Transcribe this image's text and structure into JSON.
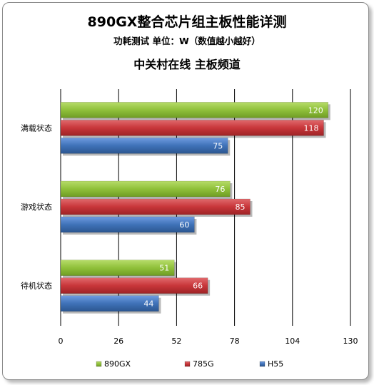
{
  "chart_data": {
    "type": "bar",
    "orientation": "horizontal",
    "title": "890GX整合芯片组主板性能详测",
    "subtitle": "功耗测试 单位：W（数值越小越好）",
    "source": "中关村在线 主板频道",
    "categories": [
      "满载状态",
      "游戏状态",
      "待机状态"
    ],
    "series": [
      {
        "name": "890GX",
        "color": "#8fc03a",
        "values": [
          120,
          76,
          51
        ]
      },
      {
        "name": "785G",
        "color": "#c8363a",
        "values": [
          118,
          85,
          66
        ]
      },
      {
        "name": "H55",
        "color": "#3f72b8",
        "values": [
          75,
          60,
          44
        ]
      }
    ],
    "xlim": [
      0,
      130
    ],
    "ticks": [
      "0",
      "26",
      "52",
      "78",
      "104",
      "130"
    ],
    "grid": true,
    "legend": "bottom"
  }
}
